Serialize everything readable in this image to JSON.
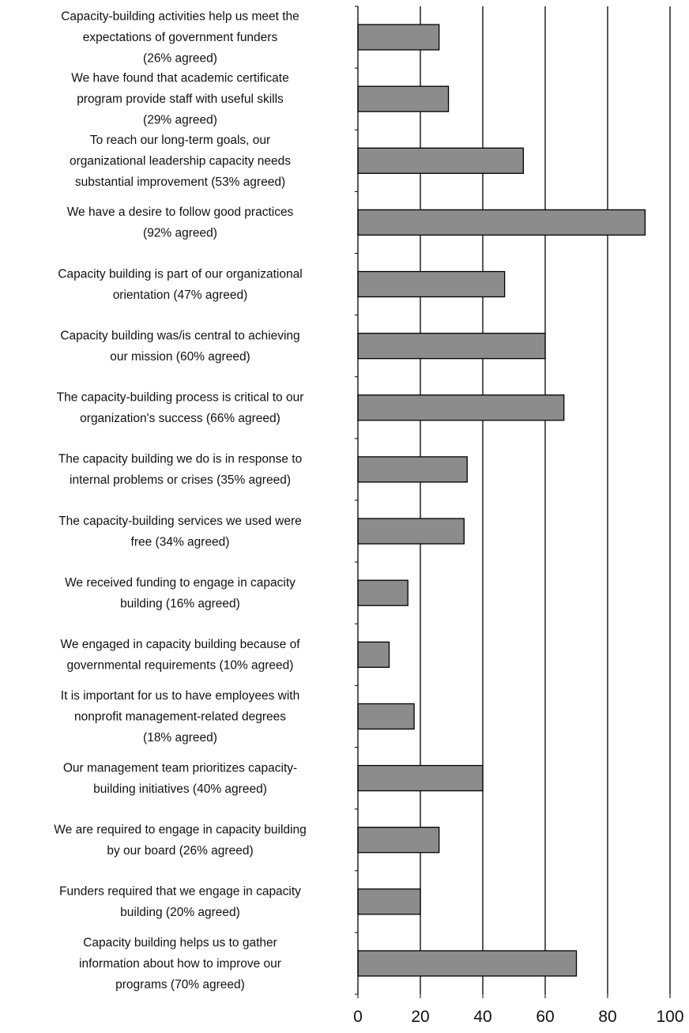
{
  "chart_data": {
    "type": "bar",
    "orientation": "horizontal",
    "title": "",
    "xlabel": "",
    "ylabel": "",
    "xlim": [
      0,
      100
    ],
    "x_ticks": [
      "0",
      "20",
      "40",
      "60",
      "80",
      "100"
    ],
    "grid": "vertical",
    "bar_color": "#8c8c8c",
    "categories": [
      [
        "Capacity-building activities help us meet the",
        "expectations of government funders",
        "(26% agreed)"
      ],
      [
        "We have found that academic certificate",
        "program provide staff with useful skills",
        "(29% agreed)"
      ],
      [
        "To reach our long-term goals, our",
        "organizational leadership capacity needs",
        "substantial improvement (53% agreed)"
      ],
      [
        "We have a desire to follow good practices",
        "(92% agreed)"
      ],
      [
        "Capacity building is part of our organizational",
        "orientation (47% agreed)"
      ],
      [
        "Capacity building was/is central to achieving",
        "our mission (60% agreed)"
      ],
      [
        "The capacity-building process is critical to our",
        "organization's success (66% agreed)"
      ],
      [
        "The capacity building we do is in response to",
        "internal problems or crises (35% agreed)"
      ],
      [
        "The capacity-building services we used were",
        "free (34% agreed)"
      ],
      [
        "We received funding to engage in capacity",
        "building (16% agreed)"
      ],
      [
        "We engaged in capacity building because of",
        "governmental requirements (10% agreed)"
      ],
      [
        "It is important for us to have employees with",
        "nonprofit management-related degrees",
        "(18% agreed)"
      ],
      [
        "Our management team prioritizes capacity-",
        "building initiatives (40% agreed)"
      ],
      [
        "We are required to engage in capacity building",
        "by our board (26% agreed)"
      ],
      [
        "Funders required that we engage in capacity",
        "building (20% agreed)"
      ],
      [
        "Capacity building helps us to gather",
        "information about how to improve our",
        "programs (70% agreed)"
      ]
    ],
    "values": [
      26,
      29,
      53,
      92,
      47,
      60,
      66,
      35,
      34,
      16,
      10,
      18,
      40,
      26,
      20,
      70
    ]
  }
}
